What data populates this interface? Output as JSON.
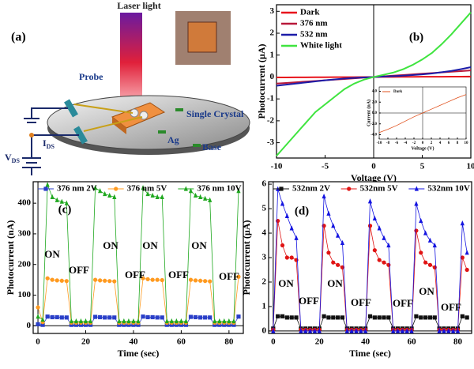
{
  "diagram": {
    "label": "(a)",
    "laser": "Laser light",
    "probe": "Probe",
    "crystal": "Single Crystal",
    "electrode": "Ag",
    "base": "Base",
    "current": "I",
    "current_sub": "DS",
    "voltage": "V",
    "voltage_sub": "DS"
  },
  "chart_data": [
    {
      "type": "line",
      "panel_label": "(b)",
      "xlabel": "Voltage (V)",
      "ylabel": "Photocurrent (µA)",
      "legend": "upper left",
      "x": [
        -10,
        -9,
        -8,
        -7,
        -6,
        -5,
        -4,
        -3,
        -2,
        -1,
        0,
        1,
        2,
        3,
        4,
        5,
        6,
        7,
        8,
        9,
        10
      ],
      "xlim": [
        -10,
        10
      ],
      "xticks": [
        -10,
        -5,
        0,
        5,
        10
      ],
      "ylim": [
        -3.7,
        3.3
      ],
      "yticks": [
        3,
        2,
        1,
        0,
        -1,
        -2,
        -3
      ],
      "series": [
        {
          "name": "Dark",
          "color": "#e8141c",
          "values": [
            -0.02,
            -0.018,
            -0.016,
            -0.014,
            -0.012,
            -0.01,
            -0.008,
            -0.006,
            -0.004,
            -0.002,
            0,
            0.002,
            0.004,
            0.006,
            0.008,
            0.01,
            0.012,
            0.014,
            0.016,
            0.018,
            0.02
          ]
        },
        {
          "name": "376 nm",
          "color": "#b8183a",
          "values": [
            -0.3,
            -0.27,
            -0.24,
            -0.21,
            -0.18,
            -0.15,
            -0.12,
            -0.09,
            -0.06,
            -0.03,
            0,
            0.03,
            0.06,
            0.09,
            0.12,
            0.15,
            0.18,
            0.21,
            0.24,
            0.27,
            0.3
          ]
        },
        {
          "name": "532 nm",
          "color": "#1c1ca8",
          "values": [
            -0.4,
            -0.35,
            -0.3,
            -0.25,
            -0.2,
            -0.15,
            -0.11,
            -0.07,
            -0.04,
            -0.02,
            0,
            0.02,
            0.04,
            0.06,
            0.09,
            0.12,
            0.16,
            0.22,
            0.28,
            0.36,
            0.45
          ]
        },
        {
          "name": "White light",
          "color": "#3fe43f",
          "values": [
            -3.6,
            -3.1,
            -2.6,
            -2.1,
            -1.6,
            -1.25,
            -0.9,
            -0.55,
            -0.3,
            -0.12,
            0,
            0.1,
            0.2,
            0.35,
            0.55,
            0.8,
            1.1,
            1.5,
            1.95,
            2.45,
            2.95
          ]
        }
      ]
    },
    {
      "type": "line",
      "xlabel": "Voltage (V)",
      "ylabel": "Current (nA)",
      "legend": "upper left",
      "x": [
        -10,
        -8,
        -6,
        -4,
        -2,
        0,
        2,
        4,
        6,
        8,
        10
      ],
      "xlim": [
        -10,
        10
      ],
      "xticks": [
        -10,
        -8,
        -6,
        -4,
        -2,
        0,
        2,
        4,
        6,
        8,
        10
      ],
      "ylim": [
        -4.8,
        4.8
      ],
      "yticks": [
        {
          "value": 4,
          "label": "4.0"
        },
        {
          "value": 2,
          "label": "2.0"
        },
        {
          "value": 0,
          "label": "0.0"
        },
        {
          "value": -2,
          "label": "-2.0"
        },
        {
          "value": -4,
          "label": "-4.0"
        }
      ],
      "series": [
        {
          "name": "Dark",
          "color": "#e0501c",
          "values": [
            -3.6,
            -3.0,
            -2.3,
            -1.5,
            -0.7,
            0,
            0.7,
            1.4,
            2.1,
            2.8,
            3.4
          ]
        }
      ]
    },
    {
      "type": "line",
      "panel_label": "(c)",
      "xlabel": "Time (sec)",
      "ylabel": "Photocurrent (nA)",
      "legend": "top",
      "x": [
        0,
        2,
        4,
        6,
        8,
        10,
        12,
        14,
        16,
        18,
        20,
        22,
        24,
        26,
        28,
        30,
        32,
        34,
        36,
        38,
        40,
        42,
        44,
        46,
        48,
        50,
        52,
        54,
        56,
        58,
        60,
        62,
        64,
        66,
        68,
        70,
        72,
        74,
        76,
        78,
        80,
        82,
        84
      ],
      "xlim": [
        -2,
        86
      ],
      "xticks": [
        0,
        20,
        40,
        60,
        80
      ],
      "ylim": [
        -25,
        470
      ],
      "yticks": [
        0,
        100,
        200,
        300,
        400
      ],
      "annotations": [
        "ON",
        "OFF",
        "ON",
        "OFF",
        "ON",
        "OFF",
        "ON",
        "OFF"
      ],
      "series": [
        {
          "name": "376 nm 2V",
          "color": "#2a3fc8",
          "marker": "square",
          "values": [
            5,
            3,
            30,
            28,
            28,
            27,
            27,
            3,
            3,
            3,
            3,
            3,
            29,
            28,
            27,
            27,
            27,
            3,
            3,
            3,
            3,
            3,
            30,
            28,
            28,
            27,
            27,
            3,
            3,
            3,
            3,
            3,
            29,
            28,
            27,
            27,
            27,
            3,
            3,
            3,
            3,
            3,
            30
          ]
        },
        {
          "name": "376 nm 5V",
          "color": "#ff9a1f",
          "marker": "circle",
          "values": [
            60,
            12,
            155,
            150,
            148,
            147,
            146,
            10,
            10,
            10,
            10,
            10,
            150,
            148,
            147,
            146,
            145,
            10,
            10,
            10,
            10,
            10,
            155,
            152,
            150,
            150,
            149,
            10,
            10,
            10,
            10,
            10,
            150,
            148,
            147,
            146,
            145,
            10,
            10,
            10,
            10,
            10,
            160
          ]
        },
        {
          "name": "376 nm 10V",
          "color": "#1fa81f",
          "marker": "triangle",
          "values": [
            30,
            20,
            460,
            420,
            410,
            405,
            400,
            15,
            15,
            15,
            15,
            15,
            450,
            440,
            430,
            425,
            420,
            15,
            15,
            15,
            15,
            15,
            450,
            430,
            425,
            420,
            420,
            15,
            15,
            15,
            15,
            15,
            440,
            425,
            420,
            415,
            410,
            15,
            15,
            15,
            15,
            15,
            440
          ]
        }
      ]
    },
    {
      "type": "line",
      "panel_label": "(d)",
      "xlabel": "Time (sec)",
      "ylabel": "Photocurrent (µA)",
      "legend": "top",
      "x": [
        0,
        2,
        4,
        6,
        8,
        10,
        12,
        14,
        16,
        18,
        20,
        22,
        24,
        26,
        28,
        30,
        32,
        34,
        36,
        38,
        40,
        42,
        44,
        46,
        48,
        50,
        52,
        54,
        56,
        58,
        60,
        62,
        64,
        66,
        68,
        70,
        72,
        74,
        76,
        78,
        80,
        82,
        84
      ],
      "xlim": [
        -2,
        86
      ],
      "xticks": [
        0,
        20,
        40,
        60,
        80
      ],
      "ylim": [
        -0.1,
        6.1
      ],
      "yticks": [
        0,
        1,
        2,
        3,
        4,
        5,
        6
      ],
      "annotations": [
        "ON",
        "OFF",
        "ON",
        "OFF",
        "OFF",
        "ON",
        "OFF"
      ],
      "series": [
        {
          "name": "532nm 2V",
          "color": "#111111",
          "marker": "square",
          "values": [
            0.1,
            0.6,
            0.6,
            0.55,
            0.55,
            0.55,
            0.1,
            0.1,
            0.1,
            0.1,
            0.1,
            0.6,
            0.55,
            0.55,
            0.55,
            0.55,
            0.1,
            0.1,
            0.1,
            0.1,
            0.1,
            0.6,
            0.55,
            0.55,
            0.55,
            0.55,
            0.1,
            0.1,
            0.1,
            0.1,
            0.1,
            0.6,
            0.55,
            0.55,
            0.55,
            0.55,
            0.1,
            0.1,
            0.1,
            0.1,
            0.1,
            0.6,
            0.55
          ]
        },
        {
          "name": "532nm 5V",
          "color": "#e01414",
          "marker": "circle",
          "values": [
            0.05,
            4.5,
            3.5,
            3.0,
            3.0,
            2.9,
            0.05,
            0.05,
            0.05,
            0.05,
            0.05,
            4.3,
            3.2,
            2.8,
            2.7,
            2.6,
            0.05,
            0.05,
            0.05,
            0.05,
            0.05,
            4.3,
            3.3,
            2.9,
            2.8,
            2.7,
            0.05,
            0.05,
            0.05,
            0.05,
            0.05,
            4.1,
            3.2,
            2.8,
            2.7,
            2.6,
            0.05,
            0.05,
            0.05,
            0.05,
            0.05,
            3.0,
            2.5
          ]
        },
        {
          "name": "532nm 10V",
          "color": "#1414e0",
          "marker": "triangle",
          "values": [
            0,
            5.8,
            5.2,
            4.7,
            4.2,
            3.8,
            0,
            0,
            0,
            0,
            0,
            5.5,
            4.8,
            4.3,
            3.9,
            3.6,
            0,
            0,
            0,
            0,
            0,
            5.3,
            4.6,
            4.2,
            3.8,
            3.5,
            0,
            0,
            0,
            0,
            0,
            5.2,
            4.5,
            4.0,
            3.7,
            3.5,
            0,
            0,
            0,
            0,
            0,
            4.4,
            3.2
          ]
        }
      ]
    }
  ]
}
